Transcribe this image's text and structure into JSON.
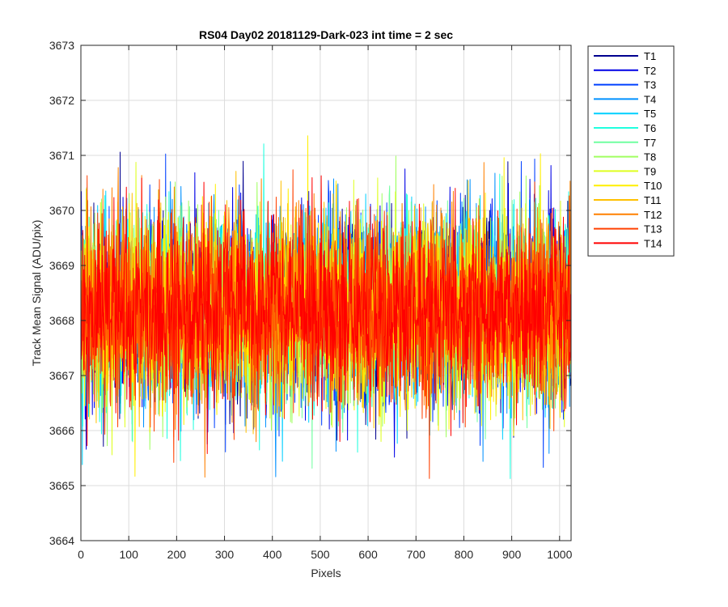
{
  "chart_data": {
    "type": "line",
    "title": "RS04 Day02 20181129-Dark-023 int time = 2 sec",
    "xlabel": "Pixels",
    "ylabel": "Track Mean Signal (ADU/pix)",
    "xlim": [
      0,
      1024
    ],
    "ylim": [
      3664,
      3673
    ],
    "xticks": [
      0,
      100,
      200,
      300,
      400,
      500,
      600,
      700,
      800,
      900,
      1000
    ],
    "yticks": [
      3664,
      3665,
      3666,
      3667,
      3668,
      3669,
      3670,
      3671,
      3672,
      3673
    ],
    "grid": true,
    "legend_position": "outside-top-right",
    "n_points_per_series": 1024,
    "series_center": 3668.2,
    "series_std": 0.85,
    "series": [
      {
        "name": "T1",
        "color": "#00008f"
      },
      {
        "name": "T2",
        "color": "#0000e6"
      },
      {
        "name": "T3",
        "color": "#0040ff"
      },
      {
        "name": "T4",
        "color": "#0090ff"
      },
      {
        "name": "T5",
        "color": "#00cfff"
      },
      {
        "name": "T6",
        "color": "#20ffdf"
      },
      {
        "name": "T7",
        "color": "#70ffa0"
      },
      {
        "name": "T8",
        "color": "#a0ff60"
      },
      {
        "name": "T9",
        "color": "#dfff20"
      },
      {
        "name": "T10",
        "color": "#ffef00"
      },
      {
        "name": "T11",
        "color": "#ffc000"
      },
      {
        "name": "T12",
        "color": "#ff8000"
      },
      {
        "name": "T13",
        "color": "#ff4000"
      },
      {
        "name": "T14",
        "color": "#ff0000"
      }
    ]
  }
}
